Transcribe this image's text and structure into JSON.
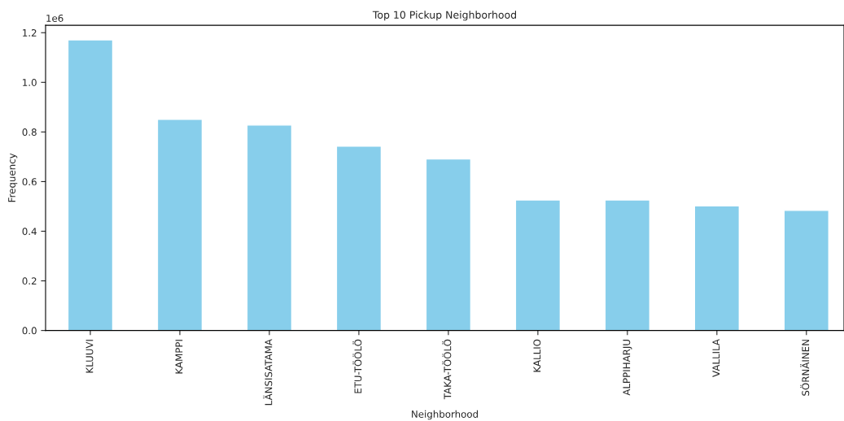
{
  "chart_data": {
    "type": "bar",
    "title": "Top 10 Pickup Neighborhood",
    "xlabel": "Neighborhood",
    "ylabel": "Frequency",
    "categories": [
      "KLUUVI",
      "KAMPPI",
      "LÄNSISATAMA",
      "ETU-TÖÖLÖ",
      "TAKA-TÖÖLÖ",
      "KALLIO",
      "ALPPIHARJU",
      "VALLILA",
      "SÖRNÄINEN"
    ],
    "values": [
      1.171,
      0.851,
      0.828,
      0.743,
      0.691,
      0.526,
      0.526,
      0.502,
      0.484
    ],
    "color": "#87ceeb",
    "ylim": [
      0,
      1.23
    ],
    "yticks": [
      {
        "value": 0,
        "label": "0.0"
      },
      0.2,
      0.4,
      0.6,
      0.8,
      {
        "value": 1,
        "label": "1.0"
      },
      1.2
    ],
    "grid": false,
    "legend": false,
    "annotations": [
      "1e6"
    ]
  }
}
